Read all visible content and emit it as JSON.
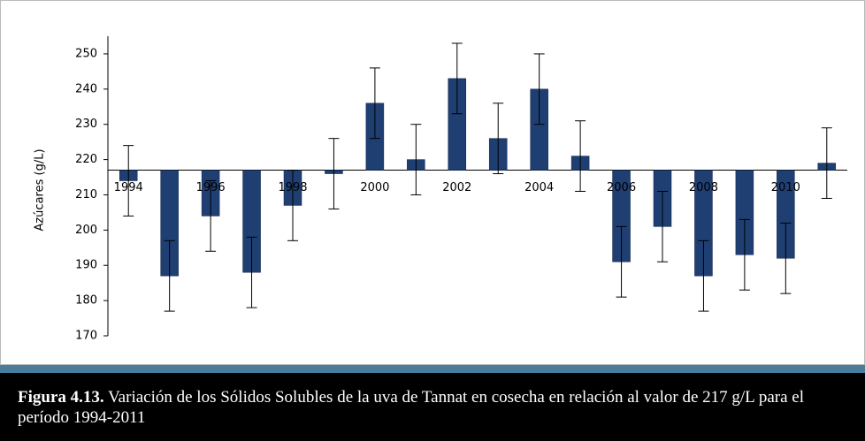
{
  "chart_data": {
    "type": "bar",
    "y_label": "Azúcares (g/L)",
    "categories": [
      "1994",
      null,
      "1996",
      null,
      "1998",
      null,
      "2000",
      null,
      "2002",
      null,
      "2004",
      null,
      "2006",
      null,
      "2008",
      null,
      "2010",
      null
    ],
    "values": [
      214,
      187,
      204,
      188,
      207,
      216,
      236,
      220,
      243,
      226,
      240,
      221,
      191,
      201,
      187,
      193,
      192,
      219
    ],
    "errors": [
      10,
      10,
      10,
      10,
      10,
      10,
      10,
      10,
      10,
      10,
      10,
      10,
      10,
      10,
      10,
      10,
      10,
      10
    ],
    "baseline": 217,
    "color": "#1f3f73",
    "ylim": [
      170,
      255
    ],
    "yticks": [
      170,
      180,
      190,
      200,
      210,
      220,
      230,
      240,
      250
    ],
    "grid": false
  },
  "caption": {
    "label": "Figura 4.13.",
    "text": "Variación de los Sólidos Solubles de la uva de Tannat en cosecha en relación al valor de 217 g/L para el período 1994-2011"
  }
}
